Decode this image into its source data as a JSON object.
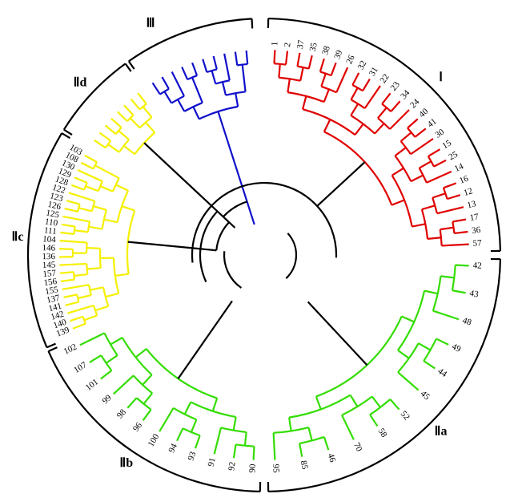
{
  "groups": [
    {
      "label": "Ⅰ",
      "leaves": [
        "1",
        "2",
        "37",
        "35",
        "38",
        "39",
        "26",
        "32",
        "31",
        "22",
        "23",
        "34",
        "24",
        "40",
        "41",
        "30",
        "15",
        "25",
        "14",
        "16",
        "12",
        "13",
        "17",
        "36",
        "57"
      ]
    },
    {
      "label": "Ⅱa",
      "leaves": [
        "42",
        "43",
        "48",
        "49",
        "44",
        "45",
        "52",
        "58",
        "70",
        "46",
        "85",
        "95"
      ]
    },
    {
      "label": "Ⅱb",
      "leaves": [
        "90",
        "92",
        "91",
        "93",
        "94",
        "100",
        "96",
        "98",
        "99",
        "101",
        "107",
        "102"
      ]
    },
    {
      "label": "Ⅱc",
      "leaves": [
        "139",
        "140",
        "142",
        "141",
        "137",
        "155",
        "156",
        "157",
        "145",
        "136",
        "146",
        "104",
        "111",
        "110",
        "125",
        "126",
        "123",
        "122",
        "128",
        "129",
        "130",
        "108",
        "103"
      ]
    },
    {
      "label": "Ⅱd"
    },
    {
      "label": "Ⅲ"
    }
  ]
}
